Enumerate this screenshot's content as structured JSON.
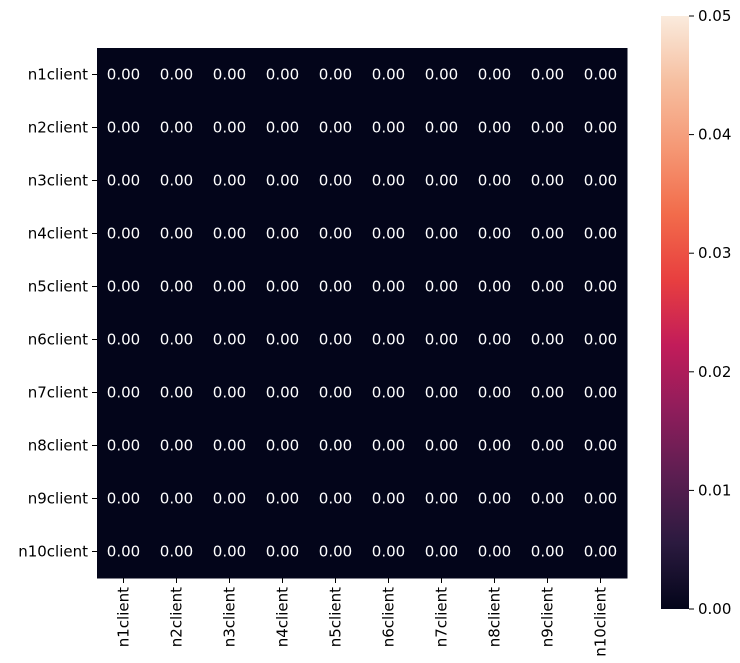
{
  "chart_data": {
    "type": "heatmap",
    "title": "",
    "xlabel": "",
    "ylabel": "",
    "x_categories": [
      "n1client",
      "n2client",
      "n3client",
      "n4client",
      "n5client",
      "n6client",
      "n7client",
      "n8client",
      "n9client",
      "n10client"
    ],
    "y_categories": [
      "n1client",
      "n2client",
      "n3client",
      "n4client",
      "n5client",
      "n6client",
      "n7client",
      "n8client",
      "n9client",
      "n10client"
    ],
    "values": [
      [
        0,
        0,
        0,
        0,
        0,
        0,
        0,
        0,
        0,
        0
      ],
      [
        0,
        0,
        0,
        0,
        0,
        0,
        0,
        0,
        0,
        0
      ],
      [
        0,
        0,
        0,
        0,
        0,
        0,
        0,
        0,
        0,
        0
      ],
      [
        0,
        0,
        0,
        0,
        0,
        0,
        0,
        0,
        0,
        0
      ],
      [
        0,
        0,
        0,
        0,
        0,
        0,
        0,
        0,
        0,
        0
      ],
      [
        0,
        0,
        0,
        0,
        0,
        0,
        0,
        0,
        0,
        0
      ],
      [
        0,
        0,
        0,
        0,
        0,
        0,
        0,
        0,
        0,
        0
      ],
      [
        0,
        0,
        0,
        0,
        0,
        0,
        0,
        0,
        0,
        0
      ],
      [
        0,
        0,
        0,
        0,
        0,
        0,
        0,
        0,
        0,
        0
      ],
      [
        0,
        0,
        0,
        0,
        0,
        0,
        0,
        0,
        0,
        0
      ]
    ],
    "cell_labels": [
      [
        "0.00",
        "0.00",
        "0.00",
        "0.00",
        "0.00",
        "0.00",
        "0.00",
        "0.00",
        "0.00",
        "0.00"
      ],
      [
        "0.00",
        "0.00",
        "0.00",
        "0.00",
        "0.00",
        "0.00",
        "0.00",
        "0.00",
        "0.00",
        "0.00"
      ],
      [
        "0.00",
        "0.00",
        "0.00",
        "0.00",
        "0.00",
        "0.00",
        "0.00",
        "0.00",
        "0.00",
        "0.00"
      ],
      [
        "0.00",
        "0.00",
        "0.00",
        "0.00",
        "0.00",
        "0.00",
        "0.00",
        "0.00",
        "0.00",
        "0.00"
      ],
      [
        "0.00",
        "0.00",
        "0.00",
        "0.00",
        "0.00",
        "0.00",
        "0.00",
        "0.00",
        "0.00",
        "0.00"
      ],
      [
        "0.00",
        "0.00",
        "0.00",
        "0.00",
        "0.00",
        "0.00",
        "0.00",
        "0.00",
        "0.00",
        "0.00"
      ],
      [
        "0.00",
        "0.00",
        "0.00",
        "0.00",
        "0.00",
        "0.00",
        "0.00",
        "0.00",
        "0.00",
        "0.00"
      ],
      [
        "0.00",
        "0.00",
        "0.00",
        "0.00",
        "0.00",
        "0.00",
        "0.00",
        "0.00",
        "0.00",
        "0.00"
      ],
      [
        "0.00",
        "0.00",
        "0.00",
        "0.00",
        "0.00",
        "0.00",
        "0.00",
        "0.00",
        "0.00",
        "0.00"
      ],
      [
        "0.00",
        "0.00",
        "0.00",
        "0.00",
        "0.00",
        "0.00",
        "0.00",
        "0.00",
        "0.00",
        "0.00"
      ]
    ],
    "colorbar": {
      "range": [
        0.0,
        0.05
      ],
      "ticks": [
        0.0,
        0.01,
        0.02,
        0.03,
        0.04,
        0.05
      ],
      "tick_labels": [
        "0.00",
        "0.01",
        "0.02",
        "0.03",
        "0.04",
        "0.05"
      ],
      "colormap": "rocket",
      "stops": [
        "#03051a",
        "#2b1a3f",
        "#5b1e51",
        "#8e1d5b",
        "#c21c5a",
        "#e83f3f",
        "#f26c4b",
        "#f59875",
        "#f6bfa0",
        "#faebdd"
      ]
    },
    "annotation_color": "#ffffff",
    "grid": false
  }
}
